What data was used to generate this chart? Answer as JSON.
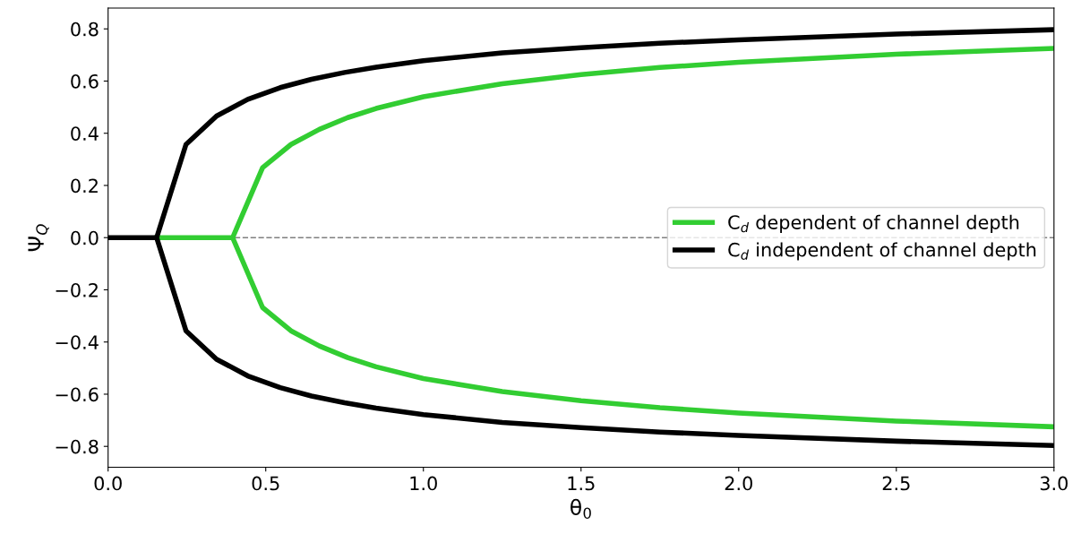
{
  "chart_data": {
    "type": "line",
    "xlabel": "θ$_{0}$",
    "ylabel": "Ψ$_{Q}$",
    "xlim": [
      0,
      3.0
    ],
    "ylim": [
      -0.88,
      0.88
    ],
    "xticks": [
      {
        "value": 0,
        "label": "0.0"
      },
      0.5,
      {
        "value": 1,
        "label": "1.0"
      },
      1.5,
      {
        "value": 2,
        "label": "2.0"
      },
      2.5,
      {
        "value": 3,
        "label": "3.0"
      }
    ],
    "yticks": [
      {
        "value": -0.8,
        "label": "−0.8"
      },
      {
        "value": -0.6,
        "label": "−0.6"
      },
      {
        "value": -0.4,
        "label": "−0.4"
      },
      {
        "value": -0.2,
        "label": "−0.2"
      },
      {
        "value": 0,
        "label": "0.0"
      },
      0.2,
      0.4,
      0.6,
      0.8
    ],
    "legend": "right",
    "grid": false,
    "line_style": "solid",
    "marker": "none",
    "ref_lines": [
      {
        "axis": "y",
        "value": 0,
        "color": "#808080",
        "line_style": "dashed"
      }
    ],
    "series": [
      {
        "name": "C$_{d}$ dependent of channel depth",
        "color": "#32cd32",
        "x": [
          0.154,
          0.395,
          0.49,
          0.58,
          0.67,
          0.76,
          0.85,
          1.0,
          1.25,
          1.5,
          1.75,
          2.0,
          2.5,
          3.0
        ],
        "values": [
          0,
          0,
          0.268,
          0.357,
          0.415,
          0.46,
          0.495,
          0.54,
          0.59,
          0.625,
          0.652,
          0.672,
          0.703,
          0.725
        ]
      },
      {
        "color": "#32cd32",
        "x": [
          0.395,
          0.49,
          0.58,
          0.67,
          0.76,
          0.85,
          1.0,
          1.25,
          1.5,
          1.75,
          2.0,
          2.5,
          3.0
        ],
        "values": [
          0,
          -0.268,
          -0.357,
          -0.415,
          -0.46,
          -0.495,
          -0.54,
          -0.59,
          -0.625,
          -0.652,
          -0.672,
          -0.703,
          -0.725
        ]
      },
      {
        "name": "C$_{d}$ independent of channel depth",
        "color": "#000000",
        "x": [
          0,
          0.154,
          0.247,
          0.344,
          0.443,
          0.546,
          0.645,
          0.75,
          0.85,
          1.0,
          1.25,
          1.5,
          1.75,
          2.0,
          2.5,
          3.0
        ],
        "values": [
          0,
          0,
          0.357,
          0.466,
          0.53,
          0.575,
          0.607,
          0.633,
          0.653,
          0.678,
          0.708,
          0.728,
          0.745,
          0.758,
          0.78,
          0.797
        ]
      },
      {
        "color": "#000000",
        "x": [
          0.154,
          0.247,
          0.344,
          0.443,
          0.546,
          0.645,
          0.75,
          0.85,
          1.0,
          1.25,
          1.5,
          1.75,
          2.0,
          2.5,
          3.0
        ],
        "values": [
          0,
          -0.357,
          -0.466,
          -0.53,
          -0.575,
          -0.607,
          -0.633,
          -0.653,
          -0.678,
          -0.708,
          -0.728,
          -0.745,
          -0.758,
          -0.78,
          -0.797
        ]
      }
    ]
  }
}
